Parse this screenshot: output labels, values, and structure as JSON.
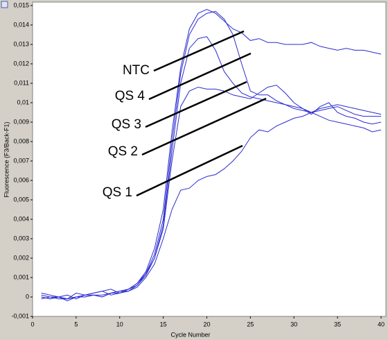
{
  "chart_data": {
    "type": "line",
    "xlabel": "Cycle Number",
    "ylabel": "Fluorescence (F3/Back-F1)",
    "x": [
      1,
      2,
      3,
      4,
      5,
      6,
      7,
      8,
      9,
      10,
      11,
      12,
      13,
      14,
      15,
      16,
      17,
      18,
      19,
      20,
      21,
      22,
      23,
      24,
      25,
      26,
      27,
      28,
      29,
      30,
      31,
      32,
      33,
      34,
      35,
      36,
      37,
      38,
      39,
      40
    ],
    "series": [
      {
        "color": "#2b2bd0",
        "values": [
          0.0001,
          0,
          -0.0001,
          -0.0001,
          0,
          0,
          0.0001,
          0.0001,
          0.0002,
          0.0003,
          0.0004,
          0.0007,
          0.0013,
          0.0025,
          0.0045,
          0.0085,
          0.0118,
          0.0138,
          0.0146,
          0.0148,
          0.0146,
          0.0142,
          0.0138,
          0.0136,
          0.0132,
          0.0133,
          0.0131,
          0.0131,
          0.013,
          0.013,
          0.013,
          0.0131,
          0.0129,
          0.0128,
          0.0127,
          0.0128,
          0.0127,
          0.0127,
          0.0126,
          0.0125
        ]
      },
      {
        "color": "#2b2bd0",
        "values": [
          0,
          -0.0001,
          0,
          -0.0001,
          0,
          0.0001,
          0.0001,
          0,
          0.0002,
          0.0002,
          0.0004,
          0.0006,
          0.0012,
          0.0022,
          0.004,
          0.008,
          0.0115,
          0.0135,
          0.0143,
          0.0146,
          0.0147,
          0.0143,
          0.0135,
          0.012,
          0.0106,
          0.0104,
          0.0104,
          0.0101,
          0.0099,
          0.0097,
          0.0096,
          0.0095,
          0.0096,
          0.0097,
          0.0098,
          0.0096,
          0.0094,
          0.0093,
          0.0093,
          0.0093
        ]
      },
      {
        "color": "#2b2bd0",
        "values": [
          0.0002,
          0.0001,
          0,
          -0.0001,
          0.0002,
          0.0001,
          0.0002,
          0.0003,
          0.0001,
          0.0002,
          0.0003,
          0.0006,
          0.0011,
          0.002,
          0.0037,
          0.0075,
          0.011,
          0.0128,
          0.0133,
          0.0134,
          0.0127,
          0.0116,
          0.011,
          0.0105,
          0.0103,
          0.0102,
          0.0101,
          0.01,
          0.0099,
          0.0098,
          0.0097,
          0.0094,
          0.0098,
          0.01,
          0.0095,
          0.0093,
          0.0092,
          0.009,
          0.0089,
          0.009
        ]
      },
      {
        "color": "#2b2bd0",
        "values": [
          0,
          -0.0001,
          0,
          0.0001,
          -0.0001,
          0.0001,
          0.0002,
          0.0003,
          0.0004,
          0.0002,
          0.0004,
          0.0007,
          0.0012,
          0.002,
          0.0035,
          0.007,
          0.0098,
          0.0106,
          0.0108,
          0.0107,
          0.0107,
          0.0106,
          0.0104,
          0.0103,
          0.0102,
          0.0105,
          0.0108,
          0.0109,
          0.0105,
          0.01,
          0.0097,
          0.0095,
          0.0093,
          0.0091,
          0.009,
          0.0089,
          0.0088,
          0.0087,
          0.0085,
          0.0086
        ]
      },
      {
        "color": "#2b2bd0",
        "values": [
          -0.0001,
          0,
          0,
          -0.0002,
          0,
          0,
          0.0001,
          0,
          0.0002,
          0.0003,
          0.0003,
          0.0005,
          0.001,
          0.0017,
          0.003,
          0.0045,
          0.0055,
          0.0056,
          0.006,
          0.0062,
          0.0063,
          0.0066,
          0.007,
          0.0075,
          0.0082,
          0.0086,
          0.0085,
          0.0088,
          0.009,
          0.0092,
          0.0093,
          0.0095,
          0.0097,
          0.0098,
          0.0099,
          0.0098,
          0.0097,
          0.0096,
          0.0095,
          0.0094
        ]
      }
    ],
    "xlim": [
      0,
      40
    ],
    "xticks": [
      0,
      5,
      10,
      15,
      20,
      25,
      30,
      35,
      40
    ],
    "ylim": [
      -0.001,
      0.015
    ],
    "yticks": [
      {
        "value": -0.001,
        "label": "-0,001"
      },
      0,
      {
        "value": 0.001,
        "label": "0,001"
      },
      {
        "value": 0.002,
        "label": "0,002"
      },
      {
        "value": 0.003,
        "label": "0,003"
      },
      {
        "value": 0.004,
        "label": "0,004"
      },
      {
        "value": 0.005,
        "label": "0,005"
      },
      {
        "value": 0.006,
        "label": "0,006"
      },
      {
        "value": 0.007,
        "label": "0,007"
      },
      {
        "value": 0.008,
        "label": "0,008"
      },
      {
        "value": 0.009,
        "label": "0,009"
      },
      {
        "value": 0.01,
        "label": "0,01"
      },
      {
        "value": 0.011,
        "label": "0,011"
      },
      {
        "value": 0.012,
        "label": "0,012"
      },
      {
        "value": 0.013,
        "label": "0,013"
      },
      {
        "value": 0.014,
        "label": "0,014"
      },
      {
        "value": 0.015,
        "label": "0,015"
      }
    ],
    "grid": false,
    "annotations": [
      "NTC",
      "QS 4",
      "QS 3",
      "QS 2",
      "QS 1"
    ]
  }
}
